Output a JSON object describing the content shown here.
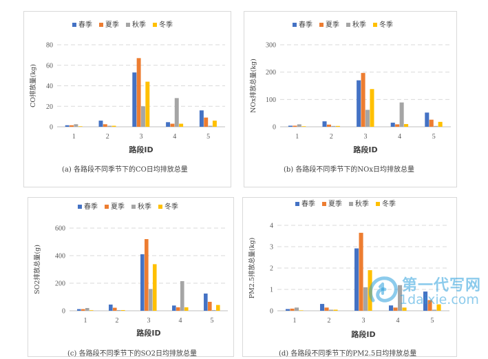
{
  "colors": {
    "spring": "#4472C4",
    "summer": "#ED7D31",
    "autumn": "#A5A5A5",
    "winter": "#FFC000",
    "watermark": "#2EA0DC"
  },
  "chart_data": [
    {
      "id": "a",
      "type": "bar",
      "categories": [
        "1",
        "2",
        "3",
        "4",
        "5"
      ],
      "series": [
        {
          "name": "春季",
          "values": [
            1.5,
            6,
            53,
            4.5,
            16
          ]
        },
        {
          "name": "夏季",
          "values": [
            1.5,
            2.5,
            67,
            3,
            9
          ]
        },
        {
          "name": "秋季",
          "values": [
            2.5,
            1,
            20,
            28,
            1
          ]
        },
        {
          "name": "冬季",
          "values": [
            0.5,
            1,
            44,
            3,
            6
          ]
        }
      ],
      "xlabel": "路段ID",
      "ylabel": "CO排放量(kg)",
      "ylim": [
        0,
        80
      ],
      "yticks": [
        "0",
        "20",
        "40",
        "60",
        "80"
      ],
      "grid": true,
      "legend": "top",
      "caption": "(a) 各路段不同季节下的CO日均排放总量"
    },
    {
      "id": "b",
      "type": "bar",
      "categories": [
        "1",
        "2",
        "3",
        "4",
        "5"
      ],
      "series": [
        {
          "name": "春季",
          "values": [
            4,
            20,
            170,
            15,
            52
          ]
        },
        {
          "name": "夏季",
          "values": [
            4,
            8,
            197,
            9,
            26
          ]
        },
        {
          "name": "秋季",
          "values": [
            9,
            3,
            62,
            89,
            3
          ]
        },
        {
          "name": "冬季",
          "values": [
            2,
            3,
            138,
            10,
            18
          ]
        }
      ],
      "xlabel": "路段ID",
      "ylabel": "NOx排放总量(kg)",
      "ylim": [
        0,
        300
      ],
      "yticks": [
        "0",
        "100",
        "200",
        "300"
      ],
      "grid": true,
      "legend": "top",
      "caption": "(b) 各路段不同季节下的NOx日均排放总量"
    },
    {
      "id": "c",
      "type": "bar",
      "categories": [
        "1",
        "2",
        "3",
        "4",
        "5"
      ],
      "series": [
        {
          "name": "春季",
          "values": [
            12,
            45,
            410,
            38,
            125
          ]
        },
        {
          "name": "夏季",
          "values": [
            12,
            22,
            520,
            25,
            65
          ]
        },
        {
          "name": "秋季",
          "values": [
            20,
            5,
            158,
            215,
            5
          ]
        },
        {
          "name": "冬季",
          "values": [
            4,
            5,
            338,
            25,
            42
          ]
        }
      ],
      "xlabel": "路段ID",
      "ylabel": "SO2排放总量(g)",
      "ylim": [
        0,
        600
      ],
      "yticks": [
        "0",
        "200",
        "400",
        "600"
      ],
      "grid": true,
      "legend": "top",
      "caption": "(c) 各路段不同季节下的SO2日均排放总量"
    },
    {
      "id": "d",
      "type": "bar",
      "categories": [
        "1",
        "2",
        "3",
        "4",
        "5"
      ],
      "series": [
        {
          "name": "春季",
          "values": [
            0.08,
            0.32,
            2.92,
            0.25,
            0.9
          ]
        },
        {
          "name": "夏季",
          "values": [
            0.1,
            0.15,
            3.65,
            0.15,
            0.5
          ]
        },
        {
          "name": "秋季",
          "values": [
            0.15,
            0.05,
            1.1,
            1.2,
            0.05
          ]
        },
        {
          "name": "冬季",
          "values": [
            0.02,
            0.05,
            1.9,
            0.15,
            0.3
          ]
        }
      ],
      "xlabel": "路段ID",
      "ylabel": "PM2.5排放总量(kg)",
      "ylim": [
        0,
        4
      ],
      "yticks": [
        "0",
        "1",
        "2",
        "3",
        "4"
      ],
      "grid": true,
      "legend": "top",
      "caption": "(d) 各路段不同季节下的PM2.5日均排放总量"
    }
  ],
  "watermark": {
    "line1": "第一代写网",
    "line2": "1daixie.com"
  }
}
